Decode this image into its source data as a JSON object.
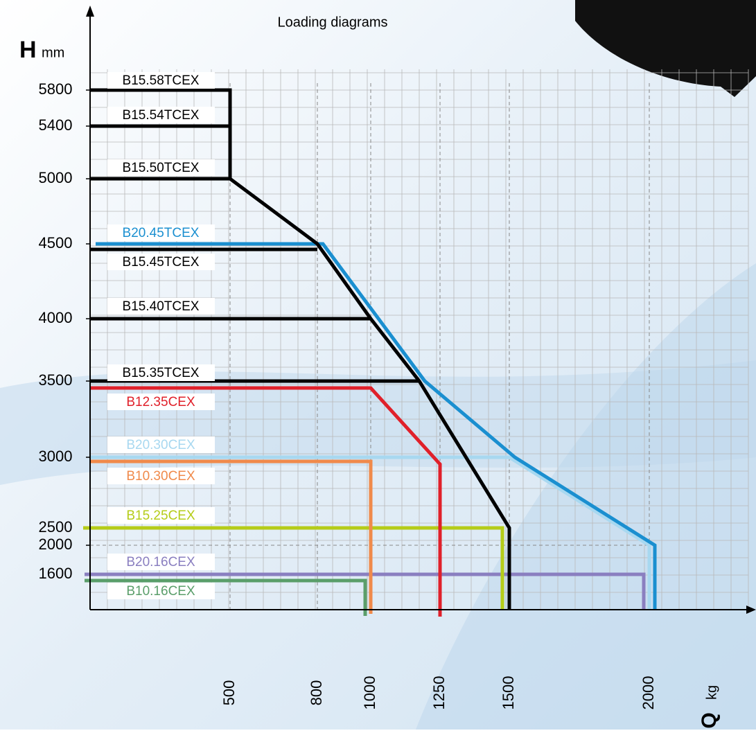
{
  "chart_data": {
    "type": "line",
    "title": "Loading diagrams",
    "y_label": "H",
    "y_unit": "mm",
    "x_label": "Q",
    "x_unit": "kg",
    "yticks": [
      1600,
      2000,
      2500,
      3000,
      3500,
      4000,
      4500,
      5000,
      5400,
      5800
    ],
    "xticks": [
      500,
      800,
      1000,
      1250,
      1500,
      2000
    ],
    "grid": true,
    "series": [
      {
        "name": "B15.58TCEX",
        "color": "#000000",
        "x": [
          0,
          500,
          500,
          800,
          1000,
          1175,
          1500,
          1500
        ],
        "values": [
          5800,
          5800,
          5000,
          4500,
          4000,
          3500,
          2500,
          0
        ]
      },
      {
        "name": "B15.54TCEX",
        "color": "#000000",
        "x": [
          0,
          500
        ],
        "values": [
          5400,
          5400
        ]
      },
      {
        "name": "B15.50TCEX",
        "color": "#000000",
        "x": [
          0,
          500
        ],
        "values": [
          5000,
          5000
        ]
      },
      {
        "name": "B20.45TCEX",
        "color": "#1a8fd0",
        "x": [
          0,
          800,
          1175,
          1500,
          2000,
          2000
        ],
        "values": [
          4500,
          4500,
          3500,
          3000,
          2000,
          0
        ]
      },
      {
        "name": "B15.45TCEX",
        "color": "#000000",
        "x": [
          0,
          800
        ],
        "values": [
          4500,
          4500
        ]
      },
      {
        "name": "B15.40TCEX",
        "color": "#000000",
        "x": [
          0,
          1000
        ],
        "values": [
          4000,
          4000
        ]
      },
      {
        "name": "B15.35TCEX",
        "color": "#000000",
        "x": [
          0,
          1175
        ],
        "values": [
          3500,
          3500
        ]
      },
      {
        "name": "B12.35CEX",
        "color": "#e0202a",
        "x": [
          0,
          1000,
          1250,
          1250
        ],
        "values": [
          3500,
          3500,
          3000,
          0
        ]
      },
      {
        "name": "B20.30CEX",
        "color": "#a8d8f0",
        "x": [
          0,
          1500,
          2000,
          2000
        ],
        "values": [
          3000,
          3000,
          2000,
          0
        ]
      },
      {
        "name": "B10.30CEX",
        "color": "#f08a4b",
        "x": [
          0,
          1000,
          1000
        ],
        "values": [
          3000,
          3000,
          0
        ]
      },
      {
        "name": "B15.25CEX",
        "color": "#b5cc18",
        "x": [
          0,
          1500,
          1500
        ],
        "values": [
          2500,
          2500,
          0
        ]
      },
      {
        "name": "B20.16CEX",
        "color": "#8a7fc0",
        "x": [
          0,
          2000,
          2000
        ],
        "values": [
          1600,
          1600,
          0
        ]
      },
      {
        "name": "B10.16CEX",
        "color": "#5a9e6a",
        "x": [
          0,
          1000,
          1000
        ],
        "values": [
          1600,
          1600,
          0
        ]
      }
    ]
  }
}
